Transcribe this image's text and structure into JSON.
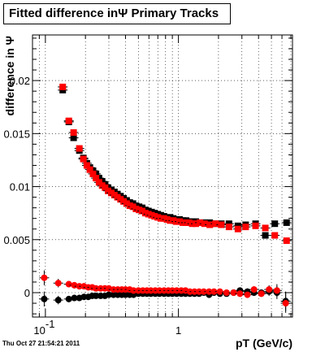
{
  "chart_data": {
    "type": "scatter",
    "title": "Fitted difference inΨ   Primary Tracks",
    "xlabel": "pT (GeV/c)",
    "ylabel": "difference in Ψ",
    "x_scale": "log",
    "xlim": [
      0.08,
      7.2
    ],
    "ylim": [
      -0.0023,
      0.0243
    ],
    "grid": true,
    "x_tick_labels": [
      {
        "value": 0.1,
        "base": "10",
        "exp": "-1"
      },
      {
        "value": 1,
        "base": "1",
        "exp": ""
      }
    ],
    "y_tick_labels": [
      {
        "value": 0,
        "label": "0"
      },
      {
        "value": 0.005,
        "label": "0.005"
      },
      {
        "value": 0.01,
        "label": "0.01"
      },
      {
        "value": 0.015,
        "label": "0.015"
      },
      {
        "value": 0.02,
        "label": "0.02"
      }
    ],
    "series": [
      {
        "color": "#000000",
        "marker": "square",
        "points": [
          [
            0.135,
            0.0191
          ],
          [
            0.15,
            0.0161
          ],
          [
            0.163,
            0.0146
          ],
          [
            0.18,
            0.0134
          ],
          [
            0.193,
            0.0127
          ],
          [
            0.205,
            0.0122
          ],
          [
            0.216,
            0.0118
          ],
          [
            0.228,
            0.0115
          ],
          [
            0.24,
            0.0112
          ],
          [
            0.253,
            0.0108
          ],
          [
            0.267,
            0.0105
          ],
          [
            0.281,
            0.0102
          ],
          [
            0.296,
            0.0099
          ],
          [
            0.313,
            0.0097
          ],
          [
            0.33,
            0.0095
          ],
          [
            0.348,
            0.0093
          ],
          [
            0.367,
            0.0091
          ],
          [
            0.387,
            0.0089
          ],
          [
            0.408,
            0.0087
          ],
          [
            0.431,
            0.0085
          ],
          [
            0.455,
            0.0084
          ],
          [
            0.48,
            0.0082
          ],
          [
            0.506,
            0.0081
          ],
          [
            0.534,
            0.008
          ],
          [
            0.564,
            0.0078
          ],
          [
            0.595,
            0.0077
          ],
          [
            0.628,
            0.0076
          ],
          [
            0.662,
            0.0075
          ],
          [
            0.699,
            0.0074
          ],
          [
            0.737,
            0.0073
          ],
          [
            0.778,
            0.0072
          ],
          [
            0.821,
            0.0071
          ],
          [
            0.866,
            0.0071
          ],
          [
            0.914,
            0.007
          ],
          [
            0.964,
            0.0069
          ],
          [
            1.02,
            0.0069
          ],
          [
            1.08,
            0.0068
          ],
          [
            1.14,
            0.0068
          ],
          [
            1.2,
            0.0067
          ],
          [
            1.27,
            0.0067
          ],
          [
            1.35,
            0.0067
          ],
          [
            1.45,
            0.0066
          ],
          [
            1.57,
            0.0066
          ],
          [
            1.72,
            0.0066
          ],
          [
            1.9,
            0.0065
          ],
          [
            2.1,
            0.0065
          ],
          [
            2.4,
            0.0065
          ],
          [
            2.8,
            0.0063
          ],
          [
            3.2,
            0.0064
          ],
          [
            3.8,
            0.0065
          ],
          [
            4.5,
            0.0054
          ],
          [
            5.3,
            0.0065
          ],
          [
            6.5,
            0.0066
          ]
        ],
        "y_err": []
      },
      {
        "color": "#ff0000",
        "marker": "square",
        "points": [
          [
            0.135,
            0.0194
          ],
          [
            0.15,
            0.0162
          ],
          [
            0.163,
            0.0151
          ],
          [
            0.18,
            0.0136
          ],
          [
            0.193,
            0.0126
          ],
          [
            0.205,
            0.012
          ],
          [
            0.216,
            0.0116
          ],
          [
            0.228,
            0.0112
          ],
          [
            0.24,
            0.0108
          ],
          [
            0.253,
            0.0104
          ],
          [
            0.267,
            0.0101
          ],
          [
            0.281,
            0.0099
          ],
          [
            0.296,
            0.0096
          ],
          [
            0.313,
            0.0094
          ],
          [
            0.33,
            0.0092
          ],
          [
            0.348,
            0.009
          ],
          [
            0.367,
            0.0088
          ],
          [
            0.387,
            0.0086
          ],
          [
            0.408,
            0.0084
          ],
          [
            0.431,
            0.0082
          ],
          [
            0.455,
            0.0081
          ],
          [
            0.48,
            0.0079
          ],
          [
            0.506,
            0.0078
          ],
          [
            0.534,
            0.0077
          ],
          [
            0.564,
            0.0075
          ],
          [
            0.595,
            0.0074
          ],
          [
            0.628,
            0.0073
          ],
          [
            0.662,
            0.0072
          ],
          [
            0.699,
            0.0071
          ],
          [
            0.737,
            0.007
          ],
          [
            0.778,
            0.007
          ],
          [
            0.821,
            0.0069
          ],
          [
            0.866,
            0.0068
          ],
          [
            0.914,
            0.0068
          ],
          [
            0.964,
            0.0067
          ],
          [
            1.02,
            0.0067
          ],
          [
            1.08,
            0.0066
          ],
          [
            1.14,
            0.0066
          ],
          [
            1.2,
            0.0066
          ],
          [
            1.27,
            0.0065
          ],
          [
            1.35,
            0.0065
          ],
          [
            1.45,
            0.0066
          ],
          [
            1.57,
            0.0065
          ],
          [
            1.72,
            0.0064
          ],
          [
            1.9,
            0.0065
          ],
          [
            2.1,
            0.0064
          ],
          [
            2.4,
            0.0062
          ],
          [
            2.8,
            0.006
          ],
          [
            3.2,
            0.0062
          ],
          [
            3.8,
            0.0063
          ],
          [
            4.5,
            0.0061
          ],
          [
            5.3,
            0.0054
          ],
          [
            6.5,
            0.0049
          ]
        ],
        "y_err": []
      },
      {
        "color": "#000000",
        "marker": "circle",
        "points": [
          [
            0.098,
            -0.0006
          ],
          [
            0.125,
            -0.0007
          ],
          [
            0.15,
            -0.0006
          ],
          [
            0.165,
            -0.0005
          ],
          [
            0.18,
            -0.0005
          ],
          [
            0.195,
            -0.0004
          ],
          [
            0.21,
            -0.0004
          ],
          [
            0.225,
            -0.0003
          ],
          [
            0.24,
            -0.0003
          ],
          [
            0.26,
            -0.0003
          ],
          [
            0.28,
            -0.0003
          ],
          [
            0.3,
            -0.0002
          ],
          [
            0.325,
            -0.0002
          ],
          [
            0.35,
            -0.0002
          ],
          [
            0.375,
            -0.0002
          ],
          [
            0.4,
            -0.0002
          ],
          [
            0.43,
            -0.0002
          ],
          [
            0.46,
            -0.0002
          ],
          [
            0.5,
            -0.0001
          ],
          [
            0.54,
            -0.0001
          ],
          [
            0.58,
            -0.0001
          ],
          [
            0.62,
            -0.0001
          ],
          [
            0.67,
            -0.0001
          ],
          [
            0.72,
            -0.0001
          ],
          [
            0.78,
            -0.0001
          ],
          [
            0.84,
            -0.0001
          ],
          [
            0.9,
            -0.0001
          ],
          [
            0.97,
            -0.0001
          ],
          [
            1.05,
            -0.0001
          ],
          [
            1.13,
            -0.0001
          ],
          [
            1.22,
            -0.0001
          ],
          [
            1.32,
            -0.0001
          ],
          [
            1.43,
            -0.0001
          ],
          [
            1.55,
            0.0
          ],
          [
            1.7,
            -0.0002
          ],
          [
            1.85,
            0.0
          ],
          [
            2.05,
            -0.0001
          ],
          [
            2.3,
            -0.0001
          ],
          [
            2.6,
            0.0
          ],
          [
            2.9,
            0.0002
          ],
          [
            3.3,
            0.0001
          ],
          [
            3.7,
            0.0
          ],
          [
            4.2,
            0.0
          ],
          [
            4.8,
            0.0001
          ],
          [
            5.5,
            0.0
          ],
          [
            6.4,
            -0.0008
          ]
        ],
        "y_err": [
          0.0007,
          0.0004,
          0.0003,
          0.0003,
          0.0002,
          0.0002,
          0.0002,
          0.0002,
          0.0002,
          0.0002,
          0.0002,
          0.0002,
          0.0002,
          0.0002,
          0.0002,
          0.0002,
          0.0002,
          0.0002,
          0.0002,
          0.0002,
          0.0002,
          0.0002,
          0.0002,
          0.0002,
          0.0002,
          0.0002,
          0.0002,
          0.0002,
          0.0002,
          0.0002,
          0.0002,
          0.0002,
          0.0002,
          0.0002,
          0.0002,
          0.0002,
          0.0002,
          0.0002,
          0.0002,
          0.0003,
          0.0003,
          0.0003,
          0.0003,
          0.0004,
          0.0006,
          0.0009
        ]
      },
      {
        "color": "#ff0000",
        "marker": "circle",
        "points": [
          [
            0.098,
            0.0014
          ],
          [
            0.125,
            0.0009
          ],
          [
            0.15,
            0.0008
          ],
          [
            0.165,
            0.0007
          ],
          [
            0.18,
            0.0006
          ],
          [
            0.195,
            0.0006
          ],
          [
            0.21,
            0.0005
          ],
          [
            0.225,
            0.0005
          ],
          [
            0.24,
            0.0004
          ],
          [
            0.26,
            0.0004
          ],
          [
            0.28,
            0.0004
          ],
          [
            0.3,
            0.0004
          ],
          [
            0.325,
            0.0003
          ],
          [
            0.35,
            0.0003
          ],
          [
            0.375,
            0.0003
          ],
          [
            0.4,
            0.0003
          ],
          [
            0.43,
            0.0003
          ],
          [
            0.46,
            0.0002
          ],
          [
            0.5,
            0.0002
          ],
          [
            0.54,
            0.0002
          ],
          [
            0.58,
            0.0002
          ],
          [
            0.62,
            0.0002
          ],
          [
            0.67,
            0.0002
          ],
          [
            0.72,
            0.0002
          ],
          [
            0.78,
            0.0002
          ],
          [
            0.84,
            0.0002
          ],
          [
            0.9,
            0.0002
          ],
          [
            0.97,
            0.0002
          ],
          [
            1.05,
            0.0002
          ],
          [
            1.13,
            0.0002
          ],
          [
            1.22,
            0.0001
          ],
          [
            1.32,
            0.0001
          ],
          [
            1.43,
            0.0001
          ],
          [
            1.55,
            0.0001
          ],
          [
            1.7,
            0.0001
          ],
          [
            1.85,
            0.0001
          ],
          [
            2.05,
            0.0001
          ],
          [
            2.3,
            0.0
          ],
          [
            2.6,
            0.0
          ],
          [
            2.9,
            -0.0001
          ],
          [
            3.3,
            -0.0002
          ],
          [
            3.7,
            0.0003
          ],
          [
            4.2,
            -0.0001
          ],
          [
            4.8,
            0.0003
          ],
          [
            5.5,
            0.0002
          ],
          [
            6.4,
            -0.001
          ]
        ],
        "y_err": [
          0.0007,
          0.0004,
          0.0003,
          0.0003,
          0.0002,
          0.0002,
          0.0002,
          0.0002,
          0.0002,
          0.0002,
          0.0002,
          0.0002,
          0.0002,
          0.0002,
          0.0002,
          0.0002,
          0.0002,
          0.0002,
          0.0002,
          0.0002,
          0.0002,
          0.0002,
          0.0002,
          0.0002,
          0.0002,
          0.0002,
          0.0002,
          0.0002,
          0.0002,
          0.0002,
          0.0002,
          0.0002,
          0.0002,
          0.0002,
          0.0002,
          0.0002,
          0.0002,
          0.0002,
          0.0002,
          0.0003,
          0.0003,
          0.0003,
          0.0003,
          0.0004,
          0.0006,
          0.0009
        ]
      }
    ]
  },
  "footer": {
    "timestamp": "Thu Oct 27 21:54:21 2011"
  }
}
